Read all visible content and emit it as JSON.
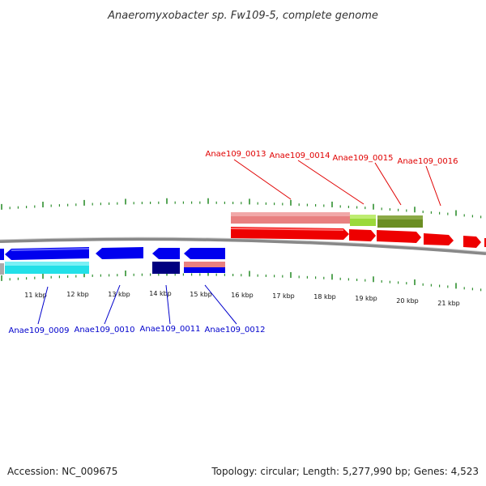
{
  "title": "Anaeromyxobacter sp. Fw109-5, complete genome",
  "footer": {
    "accession": "Accession: NC_009675",
    "summary": "Topology: circular; Length: 5,277,990 bp; Genes: 4,523"
  },
  "colors": {
    "forward_label": "#e00000",
    "reverse_label": "#0000cc",
    "backbone": "#888888",
    "ticks": "#2f8f2f",
    "cds_forward": "#ee0000",
    "cds_reverse": "#0000ee",
    "rna_pink": "#e88080",
    "cog_green": "#9ad93a",
    "cog_olive": "#6b8e23",
    "cog_cyan": "#22e0e8",
    "cog_navy": "#000080"
  },
  "scale": {
    "tick_labels": [
      "11 kbp",
      "12 kbp",
      "13 kbp",
      "14 kbp",
      "15 kbp",
      "16 kbp",
      "17 kbp",
      "18 kbp",
      "19 kbp",
      "20 kbp",
      "21 kbp"
    ]
  },
  "genes_top": [
    "Anae109_0013",
    "Anae109_0014",
    "Anae109_0015",
    "Anae109_0016"
  ],
  "genes_bottom": [
    "Anae109_0009",
    "Anae109_0010",
    "Anae109_0011",
    "Anae109_0012"
  ]
}
